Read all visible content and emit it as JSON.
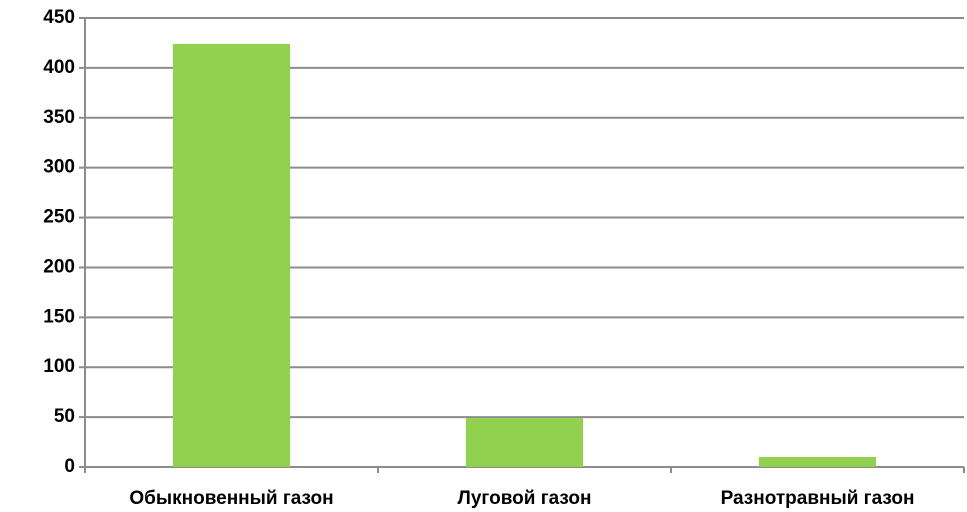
{
  "chart_data": {
    "type": "bar",
    "categories": [
      "Обыкновенный газон",
      "Луговой газон",
      "Разнотравный газон"
    ],
    "values": [
      424,
      49,
      10
    ],
    "color": "#92d050",
    "ylim": [
      0,
      450
    ],
    "yticks": [
      0,
      50,
      100,
      150,
      200,
      250,
      300,
      350,
      400,
      450
    ],
    "grid": true
  }
}
